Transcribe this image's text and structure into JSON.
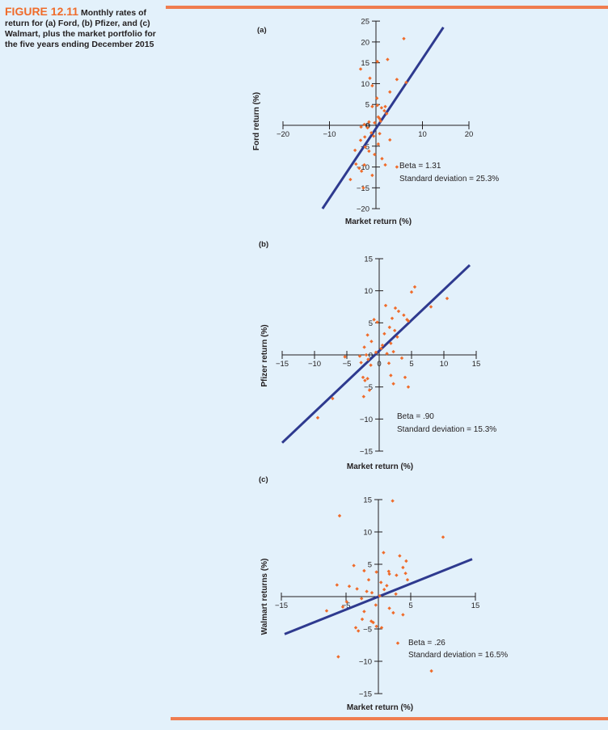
{
  "caption": {
    "figure_label": "FIGURE 12.11",
    "text": "Monthly rates of return for (a) Ford, (b) Pfizer, and (c) Walmart, plus the market portfolio for the five years ending December 2015"
  },
  "colors": {
    "line": "#2e3a8f",
    "points": "#ef6c2b",
    "rule": "#ef7d50"
  },
  "chart_data": [
    {
      "type": "scatter",
      "panel_label": "(a)",
      "xlabel": "Market return (%)",
      "ylabel": "Ford return (%)",
      "xlim": [
        -20,
        20
      ],
      "ylim": [
        -20,
        25
      ],
      "xticks": [
        -20,
        -10,
        0,
        10,
        20
      ],
      "yticks": [
        -20,
        -15,
        -10,
        -5,
        0,
        5,
        10,
        15,
        20,
        25
      ],
      "beta_label": "Beta = 1.31",
      "sd_label": "Standard deviation = 25.3%",
      "line": [
        [
          -11.5,
          -20
        ],
        [
          14.5,
          23.5
        ]
      ],
      "points": [
        [
          6,
          20.8
        ],
        [
          0.3,
          15.3
        ],
        [
          2.5,
          15.8
        ],
        [
          4.5,
          11
        ],
        [
          6.5,
          10.3
        ],
        [
          -3.3,
          13.5
        ],
        [
          -1.3,
          11.3
        ],
        [
          3,
          8
        ],
        [
          -0.8,
          9.5
        ],
        [
          0.2,
          6.5
        ],
        [
          -0.8,
          4.5
        ],
        [
          0.3,
          4.8
        ],
        [
          1.2,
          4.2
        ],
        [
          1.8,
          3.5
        ],
        [
          2.3,
          2.8
        ],
        [
          0.5,
          2
        ],
        [
          1,
          1
        ],
        [
          -0.3,
          0.6
        ],
        [
          -1.5,
          0.8
        ],
        [
          -2.5,
          0.2
        ],
        [
          -1.8,
          -0.6
        ],
        [
          -3.2,
          -0.4
        ],
        [
          -1,
          -1.8
        ],
        [
          0.8,
          -2
        ],
        [
          -0.5,
          -2.6
        ],
        [
          -2.4,
          -2.8
        ],
        [
          -3.3,
          -3.6
        ],
        [
          0.5,
          -4.5
        ],
        [
          -2.3,
          -5.2
        ],
        [
          -4.5,
          -6
        ],
        [
          -1.5,
          -6.2
        ],
        [
          -0.3,
          -7
        ],
        [
          1.3,
          -8
        ],
        [
          -4.3,
          -9.3
        ],
        [
          -2.5,
          -9.5
        ],
        [
          -3.6,
          -10.3
        ],
        [
          -3.1,
          -11
        ],
        [
          -0.8,
          -12
        ],
        [
          -5.5,
          -13
        ],
        [
          -2.7,
          -15
        ],
        [
          2,
          -9.5
        ],
        [
          4.5,
          -10
        ],
        [
          3,
          -3.5
        ],
        [
          2,
          4.5
        ],
        [
          0.8,
          1.6
        ]
      ]
    },
    {
      "type": "scatter",
      "panel_label": "(b)",
      "xlabel": "Market return (%)",
      "ylabel": "Pfizer return (%)",
      "xlim": [
        -15,
        15
      ],
      "ylim": [
        -15,
        15
      ],
      "xticks": [
        -15,
        -10,
        -5,
        0,
        5,
        10,
        15
      ],
      "yticks": [
        -15,
        -10,
        -5,
        0,
        5,
        10,
        15
      ],
      "beta_label": "Beta = .90",
      "sd_label": "Standard deviation = 15.3%",
      "line": [
        [
          -15,
          -13.7
        ],
        [
          14,
          14
        ]
      ],
      "points": [
        [
          5.5,
          10.6
        ],
        [
          5,
          9.8
        ],
        [
          10.5,
          8.8
        ],
        [
          8,
          7.5
        ],
        [
          1,
          7.7
        ],
        [
          2.5,
          7.3
        ],
        [
          3,
          6.8
        ],
        [
          3.8,
          6.2
        ],
        [
          2,
          5.7
        ],
        [
          -0.8,
          5.5
        ],
        [
          -0.3,
          5.1
        ],
        [
          4.5,
          5.3
        ],
        [
          1.6,
          4.3
        ],
        [
          2.4,
          3.8
        ],
        [
          0.8,
          3.3
        ],
        [
          -1.8,
          3.1
        ],
        [
          2.8,
          2.8
        ],
        [
          -1.2,
          2.1
        ],
        [
          1.8,
          1.8
        ],
        [
          -2.3,
          1.2
        ],
        [
          0.3,
          1
        ],
        [
          -0.5,
          0.4
        ],
        [
          1.2,
          0.2
        ],
        [
          2.2,
          0.5
        ],
        [
          -2,
          0
        ],
        [
          -3,
          -0.2
        ],
        [
          -5.3,
          -0.3
        ],
        [
          -1.7,
          -0.7
        ],
        [
          -2.8,
          -1.2
        ],
        [
          -1.3,
          -1.6
        ],
        [
          1.5,
          -1.3
        ],
        [
          -2.5,
          -3.5
        ],
        [
          -1.8,
          -3.7
        ],
        [
          -2.2,
          -4
        ],
        [
          1.8,
          -3.2
        ],
        [
          -1.5,
          -5.5
        ],
        [
          -2.4,
          -6.5
        ],
        [
          -7.2,
          -6.8
        ],
        [
          -9.5,
          -9.8
        ],
        [
          2.2,
          -4.5
        ],
        [
          4.5,
          -5
        ],
        [
          4,
          -3.5
        ],
        [
          3.5,
          -0.5
        ],
        [
          0.5,
          1.5
        ],
        [
          4.3,
          5.5
        ]
      ]
    },
    {
      "type": "scatter",
      "panel_label": "(c)",
      "xlabel": "Market return (%)",
      "ylabel": "Walmart returns (%)",
      "xlim": [
        -15,
        15
      ],
      "ylim": [
        -15,
        15
      ],
      "xticks": [
        -15,
        -5,
        5,
        15
      ],
      "yticks": [
        -15,
        -10,
        -5,
        5,
        10,
        15
      ],
      "beta_label": "Beta = .26",
      "sd_label": "Standard deviation = 16.5%",
      "line": [
        [
          -14.5,
          -5.8
        ],
        [
          14.5,
          5.8
        ]
      ],
      "points": [
        [
          -6,
          12.5
        ],
        [
          2.2,
          14.8
        ],
        [
          10,
          9.2
        ],
        [
          0.8,
          6.8
        ],
        [
          3.3,
          6.3
        ],
        [
          4.3,
          5.5
        ],
        [
          -3.8,
          4.8
        ],
        [
          -2.2,
          4
        ],
        [
          -0.3,
          3.8
        ],
        [
          1.6,
          3.9
        ],
        [
          2.8,
          3.3
        ],
        [
          3.8,
          4.5
        ],
        [
          4.5,
          2.6
        ],
        [
          -1.5,
          2.6
        ],
        [
          0.4,
          2.2
        ],
        [
          1.3,
          1.7
        ],
        [
          -3.3,
          1.2
        ],
        [
          -4.5,
          1.6
        ],
        [
          -6.4,
          1.8
        ],
        [
          -1,
          0.6
        ],
        [
          0.2,
          0.1
        ],
        [
          -2.6,
          -0.3
        ],
        [
          -4.9,
          -0.8
        ],
        [
          -0.4,
          -1.3
        ],
        [
          1.7,
          -1.8
        ],
        [
          2.3,
          -2.5
        ],
        [
          -2.2,
          -2.3
        ],
        [
          -2.5,
          -3.5
        ],
        [
          -1.1,
          -3.8
        ],
        [
          -0.3,
          -4.6
        ],
        [
          0.5,
          -4.8
        ],
        [
          -3.5,
          -4.8
        ],
        [
          -3.1,
          -5.3
        ],
        [
          -8,
          -2.2
        ],
        [
          -6.2,
          -9.3
        ],
        [
          3,
          -7.2
        ],
        [
          8.2,
          -11.5
        ],
        [
          3.8,
          -2.8
        ],
        [
          -0.8,
          -4
        ],
        [
          1.7,
          3.5
        ],
        [
          -1.8,
          0.8
        ],
        [
          4.2,
          3.6
        ],
        [
          -5.5,
          -1.6
        ],
        [
          0.9,
          1.1
        ],
        [
          2.7,
          0.4
        ]
      ]
    }
  ]
}
